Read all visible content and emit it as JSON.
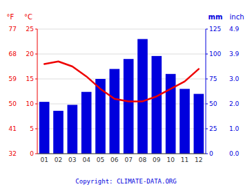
{
  "chart_data": {
    "type": "bar",
    "categories": [
      "01",
      "02",
      "03",
      "04",
      "05",
      "06",
      "07",
      "08",
      "09",
      "10",
      "11",
      "12"
    ],
    "series": [
      {
        "type": "bar",
        "color": "#0000dd",
        "axis": "y2",
        "values": [
          52,
          43,
          49,
          62,
          75,
          85,
          95,
          115,
          98,
          80,
          65,
          60
        ]
      },
      {
        "type": "line",
        "color": "#ee0000",
        "values": [
          18.0,
          18.5,
          17.5,
          15.5,
          13.0,
          11.0,
          10.5,
          10.5,
          11.5,
          13.0,
          14.5,
          17.0
        ]
      }
    ],
    "ylabel": "°C",
    "ylim": [
      0,
      25
    ],
    "yticks": [
      0,
      5,
      10,
      15,
      20,
      25
    ],
    "y3label": "°F",
    "y3lim": [
      32,
      77
    ],
    "y3ticks": [
      32,
      41,
      50,
      59,
      68,
      77
    ],
    "y2label": "mm",
    "y2lim": [
      0,
      125
    ],
    "y2ticks": [
      0,
      25,
      50,
      75,
      100,
      125
    ],
    "y4label": "inch",
    "y4ticks": [
      {
        "value": 0,
        "label": "0.0"
      },
      {
        "value": 25,
        "label": "1.0"
      },
      {
        "value": 50,
        "label": "2.0"
      },
      {
        "value": 75,
        "label": "3.0"
      },
      {
        "value": 100,
        "label": "3.9"
      },
      {
        "value": 125,
        "label": "4.9"
      }
    ],
    "grid": true,
    "annotations": [
      "Copyright: CLIMATE-DATA.ORG"
    ]
  }
}
